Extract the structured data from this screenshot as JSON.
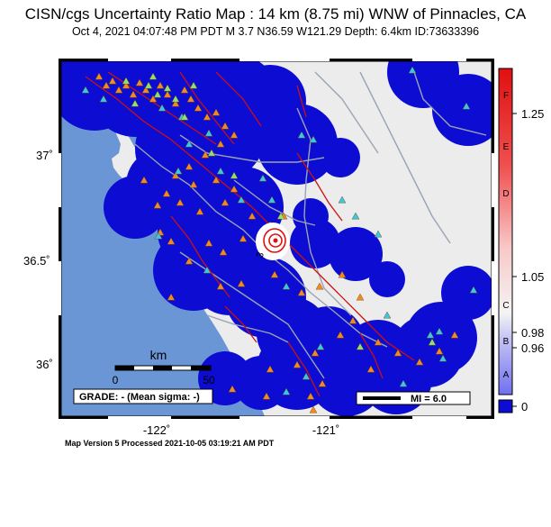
{
  "header": {
    "title": "CISN/cgs Uncertainty Ratio Map : 14 km (8.75 mi) WNW of Pinnacles, CA",
    "subtitle": "Oct  4, 2021 04:07:48 PM PDT    M 3.7    N36.59 W121.29    Depth: 6.4km    ID:73633396"
  },
  "map": {
    "lat_labels": [
      "37˚",
      "36.5˚",
      "36˚"
    ],
    "lon_labels": [
      "-122˚",
      "-121˚"
    ],
    "scalebar": {
      "unit": "km",
      "start": "0",
      "end": "50"
    },
    "grade_box": "GRADE: - (Mean sigma: -)",
    "mi_legend": "MI = 6.0",
    "contour_label": "3",
    "colors": {
      "ocean": "#6b96d6",
      "land": "#ececec",
      "coverage": "#0c0cd2",
      "faults": "#cc1111",
      "roads": "#9aa4b4",
      "station_orange": "#f08a24",
      "station_cyan": "#38c8e0",
      "station_green": "#8ee070"
    }
  },
  "colorbar": {
    "letters": [
      "F",
      "E",
      "D",
      "C",
      "B",
      "A"
    ],
    "values": [
      "1.25",
      "1.05",
      "0.98",
      "0.96",
      "0"
    ]
  },
  "footer": {
    "text": "Map Version 5 Processed 2021-10-05 03:19:21 AM PDT"
  }
}
